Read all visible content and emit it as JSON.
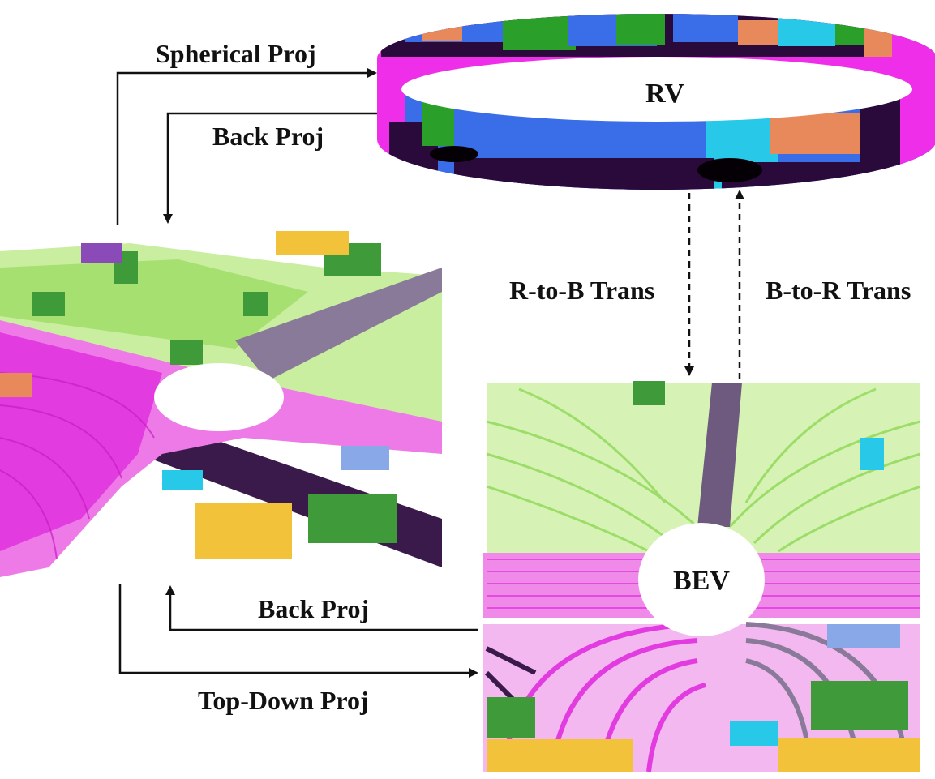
{
  "labels": {
    "spherical_proj": "Spherical Proj",
    "back_proj_top": "Back Proj",
    "rv": "RV",
    "r_to_b": "R-to-B Trans",
    "b_to_r": "B-to-R Trans",
    "bev": "BEV",
    "back_proj_bottom": "Back Proj",
    "top_down_proj": "Top-Down Proj"
  },
  "colors": {
    "vegetation": "#8ed957",
    "trunk_tree": "#3f9a3a",
    "road": "#e23be0",
    "sidewalk": "#3a1a4a",
    "car": "#e8895c",
    "building": "#f2c23a",
    "ring_blue": "#3a6ee8",
    "ring_magenta": "#ee2ee8",
    "ring_dark": "#2a0a3a",
    "ring_green": "#2aa02a",
    "ring_cyan": "#28c8e8",
    "arrow": "#111111"
  }
}
